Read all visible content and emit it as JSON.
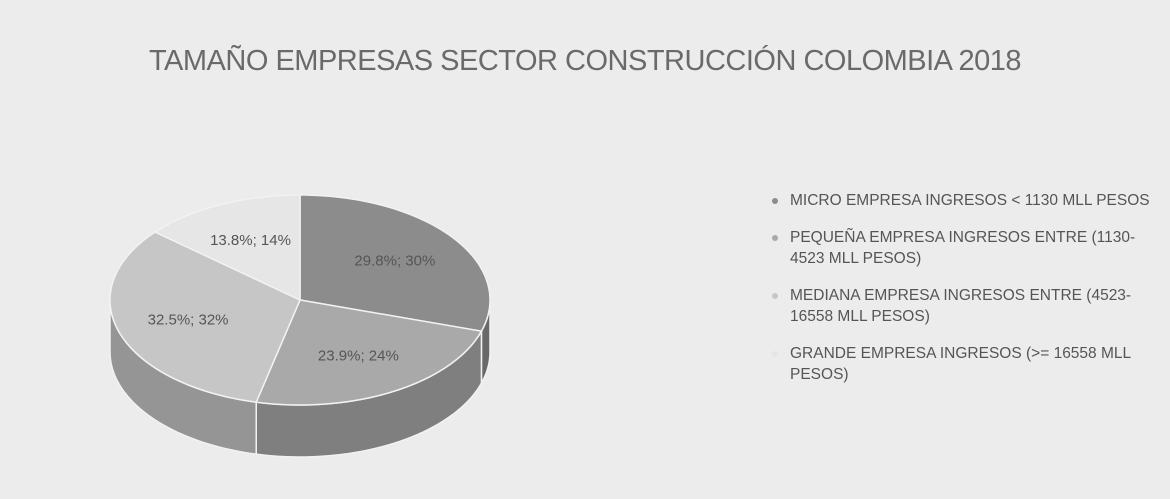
{
  "chart_data": {
    "type": "pie",
    "title": "TAMAÑO EMPRESAS SECTOR CONSTRUCCIÓN COLOMBIA 2018",
    "series": [
      {
        "name": "MICRO EMPRESA INGRESOS < 1130 MLL PESOS",
        "color": "#8c8c8c"
      },
      {
        "name": "PEQUEÑA EMPRESA INGRESOS ENTRE (1130-4523 MLL PESOS)",
        "color": "#a9a9a9"
      },
      {
        "name": "MEDIANA EMPRESA INGRESOS ENTRE (4523-16558 MLL PESOS)",
        "color": "#c6c6c6"
      },
      {
        "name": "GRANDE EMPRESA INGRESOS (>= 16558 MLL PESOS)",
        "color": "#e6e6e6"
      }
    ],
    "values": [
      29.8,
      23.9,
      32.5,
      13.8
    ],
    "value_labels": [
      "29.8%; 30%",
      "23.9%; 24%",
      "32.5%; 32%",
      "13.8%; 14%"
    ],
    "legend": "right"
  }
}
